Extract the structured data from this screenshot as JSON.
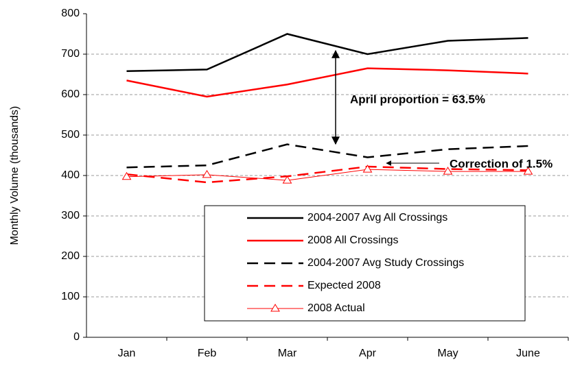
{
  "chart_data": {
    "type": "line",
    "y_label": "Monthly Volume (thousands)",
    "categories": [
      "Jan",
      "Feb",
      "Mar",
      "Apr",
      "May",
      "June"
    ],
    "series": [
      {
        "name": "2004-2007 Avg All Crossings",
        "color": "#000000",
        "dash": false,
        "width": 2.5,
        "values": [
          658,
          662,
          750,
          700,
          733,
          740
        ]
      },
      {
        "name": "2008 All Crossings",
        "color": "#ff0000",
        "dash": false,
        "width": 2.5,
        "values": [
          635,
          595,
          625,
          665,
          660,
          652
        ]
      },
      {
        "name": "2004-2007 Avg Study Crossings",
        "color": "#000000",
        "dash": true,
        "width": 2.5,
        "values": [
          420,
          425,
          477,
          445,
          465,
          473
        ]
      },
      {
        "name": "Expected 2008",
        "color": "#ff0000",
        "dash": true,
        "width": 2.5,
        "values": [
          403,
          383,
          398,
          422,
          416,
          413
        ]
      },
      {
        "name": "2008 Actual",
        "color": "#ff0000",
        "dash": false,
        "width": 1,
        "marker": "triangle",
        "values": [
          397,
          402,
          388,
          415,
          410,
          410
        ]
      }
    ],
    "annotations": [
      "April proportion = 63.5%",
      "Correction of 1.5%"
    ],
    "ylim": [
      0,
      800
    ],
    "yticks": [
      0,
      100,
      200,
      300,
      400,
      500,
      600,
      700,
      800
    ],
    "grid": true
  }
}
